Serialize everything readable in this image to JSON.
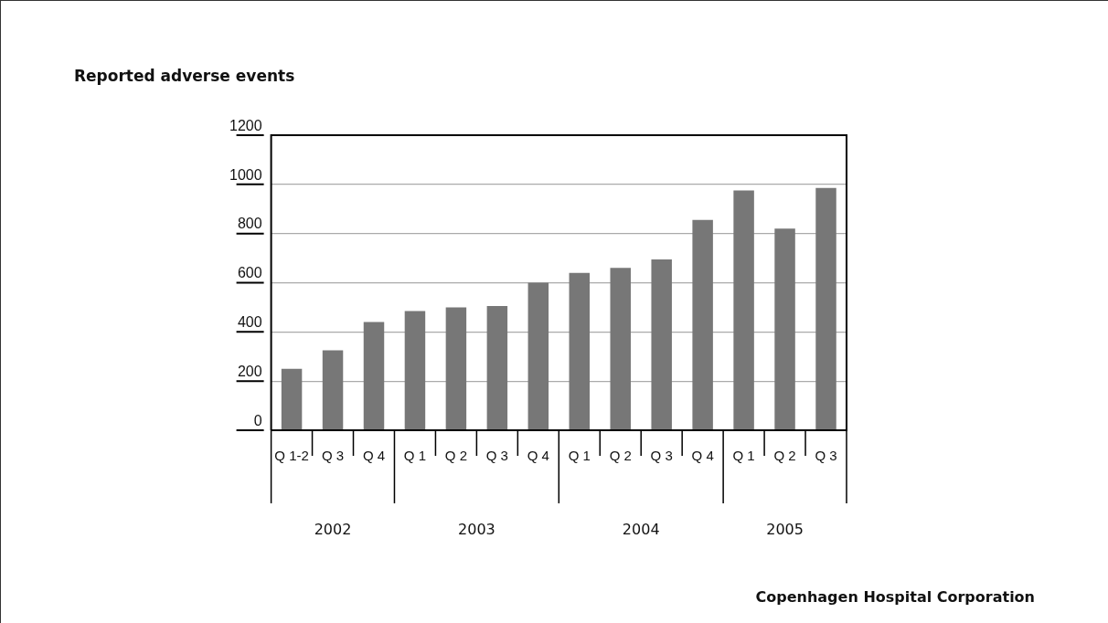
{
  "chart_data": {
    "type": "bar",
    "title": "Reported adverse events",
    "categories": [
      "Q 1-2",
      "Q 3",
      "Q 4",
      "Q 1",
      "Q 2",
      "Q 3",
      "Q 4",
      "Q 1",
      "Q 2",
      "Q 3",
      "Q 4",
      "Q 1",
      "Q 2",
      "Q 3"
    ],
    "values": [
      250,
      325,
      440,
      485,
      500,
      505,
      600,
      640,
      660,
      695,
      855,
      975,
      820,
      985
    ],
    "color": "#777777",
    "ylim": [
      0,
      1200
    ],
    "yticks": [
      0,
      200,
      400,
      600,
      800,
      1000,
      1200
    ],
    "grid": "y",
    "legend": false,
    "annotations": [
      "2002",
      "2003",
      "2004",
      "2005",
      "Copenhagen Hospital Corporation"
    ]
  }
}
